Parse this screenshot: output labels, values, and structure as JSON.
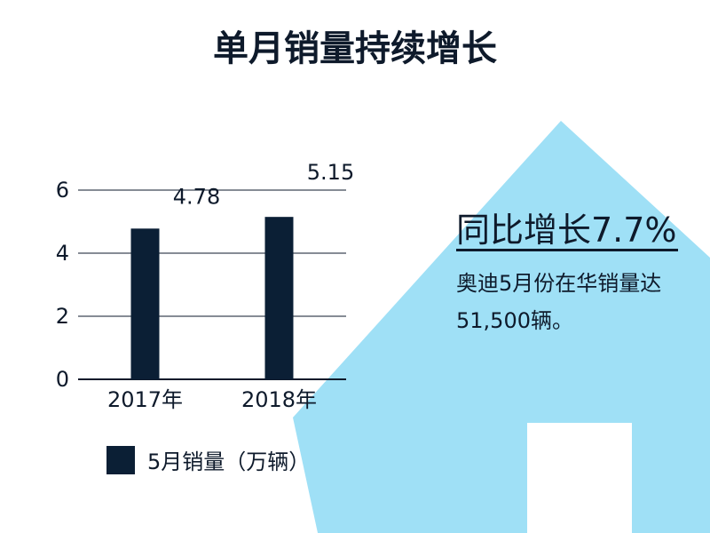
{
  "title": "单月销量持续增长",
  "colors": {
    "bar": "#0b1f35",
    "text": "#0e1a2b",
    "arrow": "#9fe0f6",
    "grid": "#0e1a2b"
  },
  "chart_data": {
    "type": "bar",
    "categories": [
      "2017年",
      "2018年"
    ],
    "series": [
      {
        "name": "5月销量（万辆）",
        "values": [
          4.78,
          5.15
        ]
      }
    ],
    "data_labels": [
      "4.78",
      "5.15"
    ],
    "yticks": [
      "0",
      "2",
      "4",
      "6"
    ],
    "ylim": [
      0,
      6
    ],
    "grid": true,
    "legend": "bottom"
  },
  "callout": {
    "headline": "同比增长7.7%",
    "body": "奥迪5月份在华销量达51,500辆。"
  }
}
